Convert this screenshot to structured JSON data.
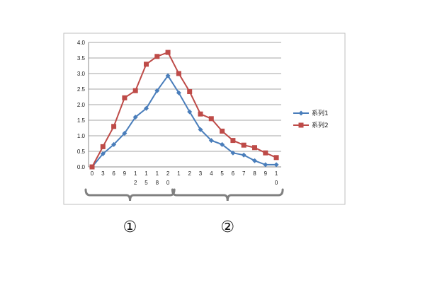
{
  "chart_data": {
    "type": "line",
    "x_labels": [
      [
        "0"
      ],
      [
        "3"
      ],
      [
        "6"
      ],
      [
        "9"
      ],
      [
        "1",
        "2"
      ],
      [
        "1",
        "5"
      ],
      [
        "1",
        "8"
      ],
      [
        "2",
        "0"
      ],
      [
        "1"
      ],
      [
        "2"
      ],
      [
        "3"
      ],
      [
        "4"
      ],
      [
        "5"
      ],
      [
        "6"
      ],
      [
        "7"
      ],
      [
        "8"
      ],
      [
        "9"
      ],
      [
        "1",
        "0"
      ]
    ],
    "ylim": [
      0,
      4.0
    ],
    "y_ticks": [
      "0.0",
      "0.5",
      "1.0",
      "1.5",
      "2.0",
      "2.5",
      "3.0",
      "3.5",
      "4.0"
    ],
    "grid": true,
    "legend_position": "right",
    "series": [
      {
        "name": "系列1",
        "color": "#4a7ebb",
        "marker": "diamond",
        "values": [
          0.0,
          0.42,
          0.72,
          1.08,
          1.6,
          1.88,
          2.45,
          2.93,
          2.38,
          1.77,
          1.2,
          0.85,
          0.72,
          0.45,
          0.38,
          0.2,
          0.07,
          0.07
        ]
      },
      {
        "name": "系列2",
        "color": "#be4b48",
        "marker": "square",
        "values": [
          0.0,
          0.65,
          1.3,
          2.22,
          2.45,
          3.3,
          3.55,
          3.68,
          3.0,
          2.42,
          1.7,
          1.55,
          1.15,
          0.85,
          0.7,
          0.62,
          0.45,
          0.3
        ]
      }
    ],
    "groups": [
      {
        "label": "①",
        "from_index": 0,
        "to_index": 7
      },
      {
        "label": "②",
        "from_index": 8,
        "to_index": 17
      }
    ]
  }
}
